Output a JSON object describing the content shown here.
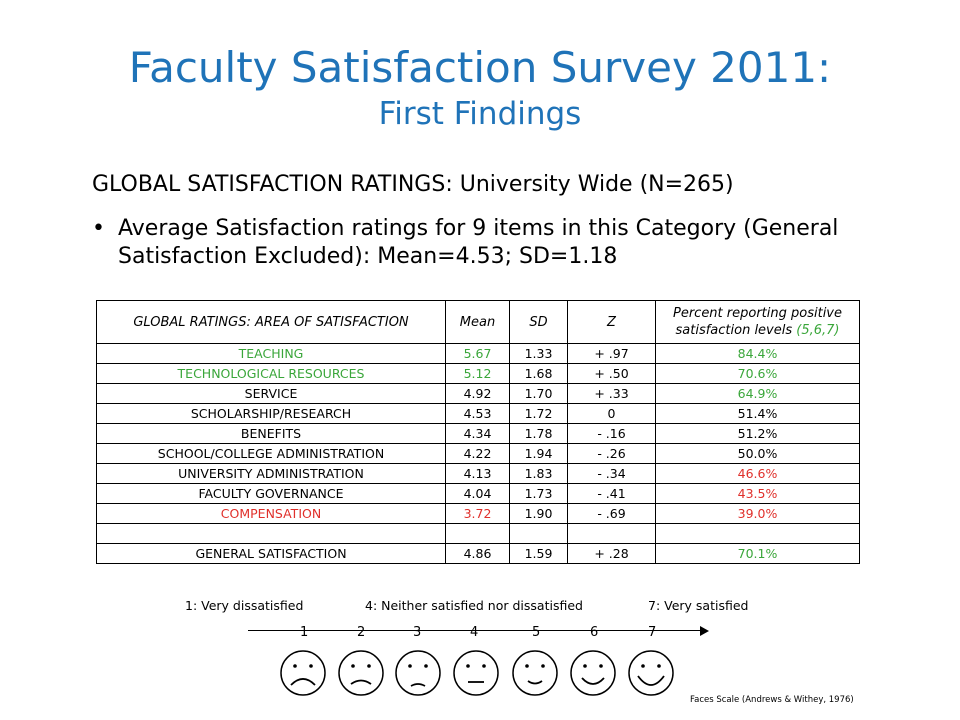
{
  "title": "Faculty Satisfaction Survey 2011:",
  "subtitle": "First Findings",
  "subheading": "GLOBAL SATISFACTION RATINGS: University Wide (N=265)",
  "bullet_text": "Average Satisfaction ratings for 9 items in this Category (General Satisfaction Excluded):  Mean=4.53;  SD=1.18",
  "table": {
    "headers": [
      "GLOBAL RATINGS: AREA OF SATISFACTION",
      "Mean",
      "SD",
      "Z",
      "Percent reporting positive satisfaction levels (5,6,7)"
    ],
    "rows": [
      [
        "TEACHING",
        "5.67",
        "1.33",
        "+ .97",
        "84.4%"
      ],
      [
        "TECHNOLOGICAL RESOURCES",
        "5.12",
        "1.68",
        "+ .50",
        "70.6%"
      ],
      [
        "SERVICE",
        "4.92",
        "1.70",
        "+ .33",
        "64.9%"
      ],
      [
        "SCHOLARSHIP/RESEARCH",
        "4.53",
        "1.72",
        "0",
        "51.4%"
      ],
      [
        "BENEFITS",
        "4.34",
        "1.78",
        "- .16",
        "51.2%"
      ],
      [
        "SCHOOL/COLLEGE ADMINISTRATION",
        "4.22",
        "1.94",
        "- .26",
        "50.0%"
      ],
      [
        "UNIVERSITY ADMINISTRATION",
        "4.13",
        "1.83",
        "- .34",
        "46.6%"
      ],
      [
        "FACULTY GOVERNANCE",
        "4.04",
        "1.73",
        "- .41",
        "43.5%"
      ],
      [
        "COMPENSATION",
        "3.72",
        "1.90",
        "- .69",
        "39.0%"
      ],
      [
        "",
        "",
        "",
        "",
        ""
      ],
      [
        "GENERAL SATISFACTION",
        "4.86",
        "1.59",
        "+ .28",
        "70.1%"
      ]
    ]
  },
  "scale": {
    "label_low": "1: Very dissatisfied",
    "label_mid": "4: Neither satisfied nor dissatisfied",
    "label_high": "7: Very satisfied",
    "numbers": [
      "1",
      "2",
      "3",
      "4",
      "5",
      "6",
      "7"
    ]
  },
  "caption": "Faces Scale (Andrews & Withey, 1976)",
  "colors": {
    "title": "#1f73b8",
    "positive": "#3aa63a",
    "negative": "#e0302b"
  }
}
